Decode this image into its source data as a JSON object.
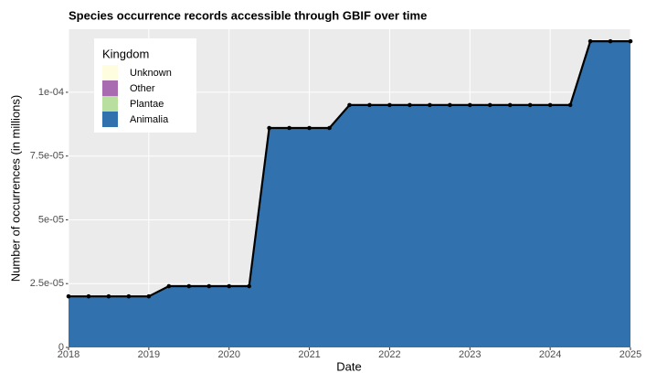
{
  "chart_data": {
    "type": "area",
    "title": "Species occurrence records accessible through GBIF over time",
    "x_label": "Date",
    "y_label": "Number of occurrences (in millions)",
    "x": [
      2018,
      2018.25,
      2018.5,
      2018.75,
      2019,
      2019.25,
      2019.5,
      2019.75,
      2020,
      2020.25,
      2020.5,
      2020.75,
      2021,
      2021.25,
      2021.5,
      2021.75,
      2022,
      2022.25,
      2022.5,
      2022.75,
      2023,
      2023.25,
      2023.5,
      2023.75,
      2024,
      2024.25,
      2024.5,
      2024.75,
      2025
    ],
    "series": [
      {
        "name": "Animalia",
        "color": "#3171ad",
        "values": [
          2e-05,
          2e-05,
          2e-05,
          2e-05,
          2e-05,
          2.4e-05,
          2.4e-05,
          2.4e-05,
          2.4e-05,
          2.4e-05,
          8.6e-05,
          8.6e-05,
          8.6e-05,
          8.6e-05,
          9.5e-05,
          9.5e-05,
          9.5e-05,
          9.5e-05,
          9.5e-05,
          9.5e-05,
          9.5e-05,
          9.5e-05,
          9.5e-05,
          9.5e-05,
          9.5e-05,
          9.5e-05,
          0.00012,
          0.00012,
          0.00012
        ]
      }
    ],
    "legend": {
      "title": "Kingdom",
      "items": [
        {
          "name": "Unknown",
          "color": "#fffde0"
        },
        {
          "name": "Other",
          "color": "#a86bb0"
        },
        {
          "name": "Plantae",
          "color": "#b8dea0"
        },
        {
          "name": "Animalia",
          "color": "#3171ad"
        }
      ]
    },
    "line_color": "#000000",
    "xlim": [
      2018,
      2025
    ],
    "xticks": [
      2018,
      2019,
      2020,
      2021,
      2022,
      2023,
      2024,
      2025
    ],
    "ylim": [
      0,
      0.0001247
    ],
    "yticks": [
      0,
      {
        "value": 2.5e-05,
        "label": "2.5e-05"
      },
      {
        "value": 5e-05,
        "label": "5e-05"
      },
      {
        "value": 7.5e-05,
        "label": "7.5e-05"
      },
      {
        "value": 0.0001,
        "label": "1e-04"
      }
    ],
    "grid": true
  }
}
